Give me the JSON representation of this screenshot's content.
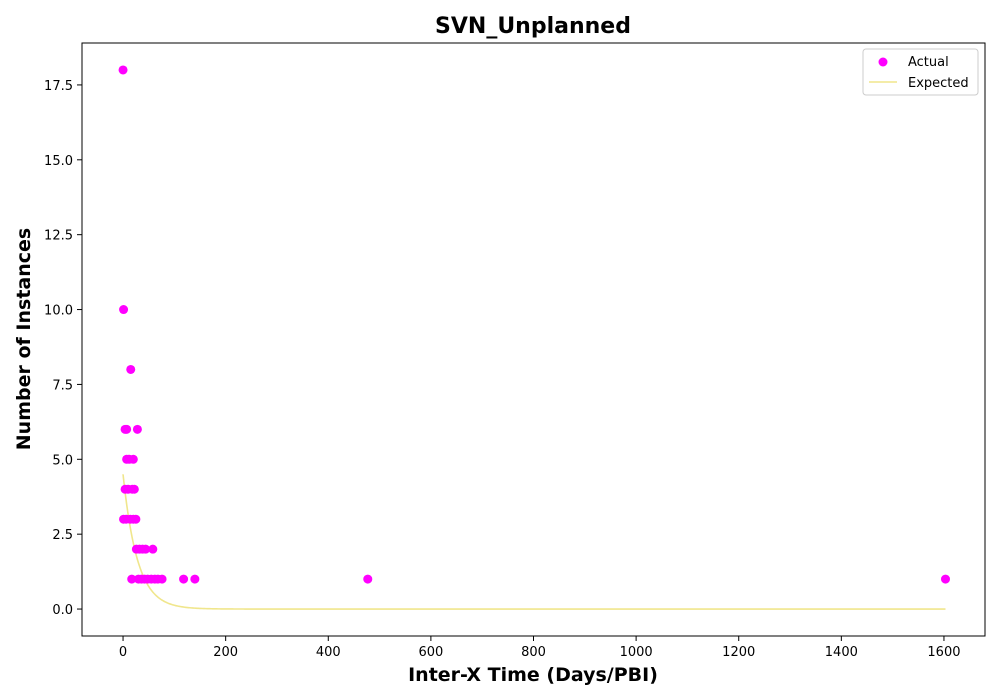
{
  "chart_data": {
    "type": "scatter",
    "title": "SVN_Unplanned",
    "xlabel": "Inter-X Time (Days/PBI)",
    "ylabel": "Number of Instances",
    "xlim": [
      -80,
      1680
    ],
    "ylim": [
      -0.9,
      18.9
    ],
    "xticks": [
      "0",
      "200",
      "400",
      "600",
      "800",
      "1000",
      "1200",
      "1400",
      "1600"
    ],
    "yticks": [
      "0.0",
      "2.5",
      "5.0",
      "7.5",
      "10.0",
      "12.5",
      "15.0",
      "17.5"
    ],
    "grid": false,
    "legend": "top-right",
    "colors": {
      "actual": "#ff00ff",
      "expected": "#f0e68c"
    },
    "series": [
      {
        "name": "Actual",
        "kind": "scatter",
        "points": [
          {
            "x": 0,
            "y": 18
          },
          {
            "x": 1,
            "y": 10
          },
          {
            "x": 15,
            "y": 8
          },
          {
            "x": 4,
            "y": 6
          },
          {
            "x": 7,
            "y": 6
          },
          {
            "x": 28,
            "y": 6
          },
          {
            "x": 7,
            "y": 5
          },
          {
            "x": 12,
            "y": 5
          },
          {
            "x": 20,
            "y": 5
          },
          {
            "x": 4,
            "y": 4
          },
          {
            "x": 10,
            "y": 4
          },
          {
            "x": 18,
            "y": 4
          },
          {
            "x": 22,
            "y": 4
          },
          {
            "x": 1,
            "y": 3
          },
          {
            "x": 6,
            "y": 3
          },
          {
            "x": 14,
            "y": 3
          },
          {
            "x": 20,
            "y": 3
          },
          {
            "x": 25,
            "y": 3
          },
          {
            "x": 26,
            "y": 2
          },
          {
            "x": 32,
            "y": 2
          },
          {
            "x": 38,
            "y": 2
          },
          {
            "x": 44,
            "y": 2
          },
          {
            "x": 58,
            "y": 2
          },
          {
            "x": 17,
            "y": 1
          },
          {
            "x": 30,
            "y": 1
          },
          {
            "x": 36,
            "y": 1
          },
          {
            "x": 42,
            "y": 1
          },
          {
            "x": 48,
            "y": 1
          },
          {
            "x": 55,
            "y": 1
          },
          {
            "x": 62,
            "y": 1
          },
          {
            "x": 68,
            "y": 1
          },
          {
            "x": 76,
            "y": 1
          },
          {
            "x": 118,
            "y": 1
          },
          {
            "x": 140,
            "y": 1
          },
          {
            "x": 477,
            "y": 1
          },
          {
            "x": 1603,
            "y": 1
          }
        ]
      },
      {
        "name": "Expected",
        "kind": "line",
        "model": {
          "amplitude": 4.5,
          "decay_scale": 28
        },
        "x_range": [
          0,
          1603
        ]
      }
    ]
  }
}
